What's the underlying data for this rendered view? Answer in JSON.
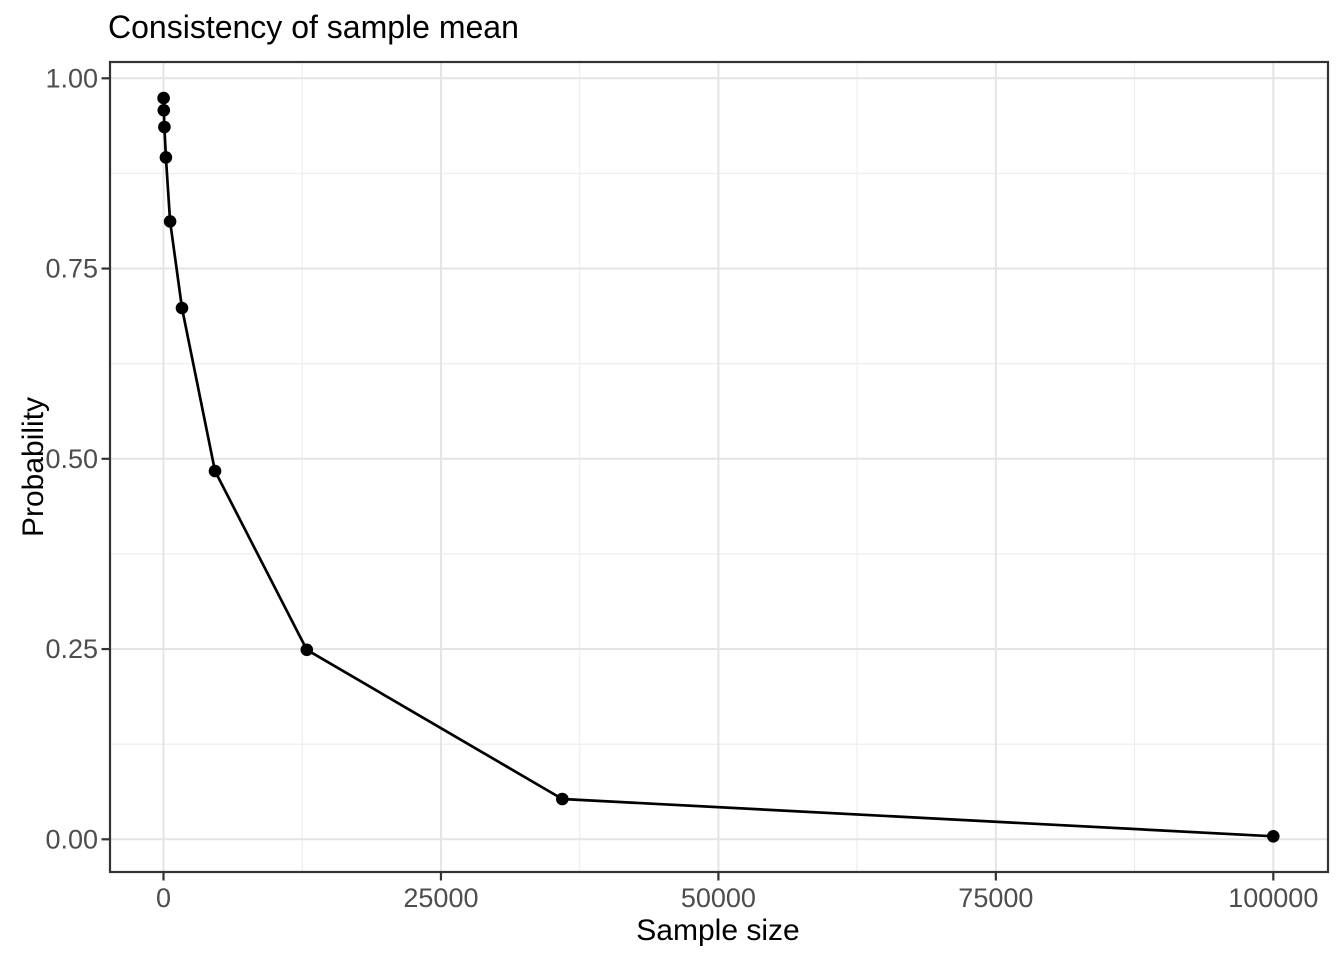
{
  "figure": {
    "title": "Consistency of sample mean",
    "xlabel": "Sample size",
    "ylabel": "Probability"
  },
  "chart_data": {
    "type": "line",
    "title": "Consistency of sample mean",
    "xlabel": "Sample size",
    "ylabel": "Probability",
    "x": [
      10,
      28,
      77,
      215,
      599,
      1668,
      4642,
      12915,
      35938,
      100000
    ],
    "y": [
      0.974,
      0.958,
      0.936,
      0.896,
      0.812,
      0.698,
      0.484,
      0.249,
      0.053,
      0.004
    ],
    "xlim": [
      0,
      100000
    ],
    "ylim": [
      0,
      1
    ],
    "x_major_ticks": [
      0,
      25000,
      50000,
      75000,
      100000
    ],
    "x_tick_labels": [
      "0",
      "25000",
      "50000",
      "75000",
      "100000"
    ],
    "x_minor_ticks": [
      12500,
      37500,
      62500,
      87500
    ],
    "y_major_ticks": [
      0,
      0.25,
      0.5,
      0.75,
      1
    ],
    "y_tick_labels": [
      "0.00",
      "0.25",
      "0.50",
      "0.75",
      "1.00"
    ],
    "y_minor_ticks": [
      0.125,
      0.375,
      0.625,
      0.875
    ],
    "grid": true,
    "legend": "none",
    "marker": "filled-circle",
    "style": {
      "line_color": "#000000",
      "point_color": "#000000",
      "major_grid_color": "#E4E4E4",
      "minor_grid_color": "#EFEFEF",
      "panel_border_color": "#333333",
      "tick_color": "#333333",
      "tick_label_color": "#4D4D4D",
      "title_color": "#000000",
      "background_color": "#FFFFFF"
    }
  }
}
